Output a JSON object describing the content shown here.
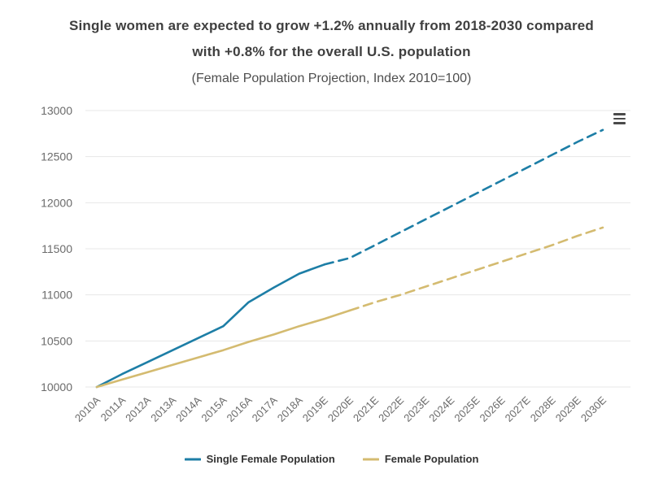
{
  "header": {
    "title_line1": "Single women are expected to grow +1.2% annually from 2018-2030 compared",
    "title_line2": "with +0.8% for the overall U.S. population",
    "subtitle": "(Female Population Projection, Index 2010=100)"
  },
  "icons": {
    "context_menu": "hamburger-menu-icon"
  },
  "chart_data": {
    "type": "line",
    "title": "Single women are expected to grow +1.2% annually from 2018-2030 compared with +0.8% for the overall U.S. population",
    "subtitle": "(Female Population Projection, Index 2010=100)",
    "categories": [
      "2010A",
      "2011A",
      "2012A",
      "2013A",
      "2014A",
      "2015A",
      "2016A",
      "2017A",
      "2018A",
      "2019E",
      "2020E",
      "2021E",
      "2022E",
      "2023E",
      "2024E",
      "2025E",
      "2026E",
      "2027E",
      "2028E",
      "2029E",
      "2030E"
    ],
    "series": [
      {
        "name": "Single Female Population",
        "color": "#1d7ea6",
        "solid_until_index": 9,
        "values": [
          10000,
          10140,
          10270,
          10400,
          10530,
          10660,
          10920,
          11080,
          11230,
          11330,
          11400,
          11540,
          11680,
          11820,
          11960,
          12100,
          12240,
          12380,
          12520,
          12660,
          12790
        ]
      },
      {
        "name": "Female Population",
        "color": "#d4bb70",
        "solid_until_index": 10,
        "values": [
          10000,
          10080,
          10160,
          10240,
          10320,
          10400,
          10490,
          10570,
          10660,
          10740,
          10830,
          10920,
          11000,
          11090,
          11180,
          11270,
          11360,
          11450,
          11540,
          11640,
          11730
        ]
      }
    ],
    "ylim": [
      10000,
      13000
    ],
    "yticks": [
      10000,
      10500,
      11000,
      11500,
      12000,
      12500,
      13000
    ],
    "grid": "horizontal",
    "legend_position": "bottom",
    "xlabel": "",
    "ylabel": "",
    "colors": {
      "gridline": "#e7e7e7",
      "axis_label": "#6b6b6b",
      "title_text": "#3f3f3f"
    }
  }
}
